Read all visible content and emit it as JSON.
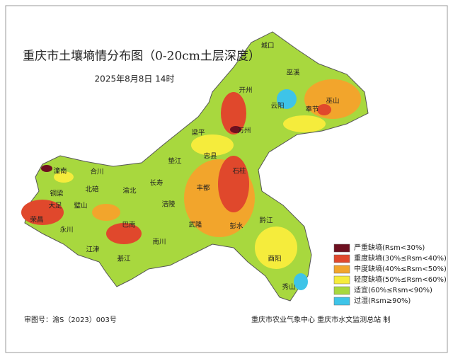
{
  "header": {
    "title": "重庆市土壤墒情分布图（0-20cm土层深度）",
    "date": "2025年8月8日  14时"
  },
  "map": {
    "labels": [
      "城口",
      "巫溪",
      "开州",
      "巫山",
      "云阳",
      "奉节",
      "万州",
      "梁平",
      "忠县",
      "垫江",
      "石柱",
      "潼南",
      "合川",
      "长寿",
      "丰都",
      "铜梁",
      "北碚",
      "渝北",
      "大足",
      "璧山",
      "涪陵",
      "荣昌",
      "永川",
      "巴南",
      "武隆",
      "彭水",
      "黔江",
      "南川",
      "江津",
      "綦江",
      "酉阳",
      "秀山"
    ]
  },
  "legend": [
    {
      "label": "严重缺墒(Rsm<30%)",
      "color": "#6e1020"
    },
    {
      "label": "重度缺墒(30%≤Rsm<40%)",
      "color": "#e0482c"
    },
    {
      "label": "中度缺墒(40%≤Rsm<50%)",
      "color": "#f2a52c"
    },
    {
      "label": "轻度缺墒(50%≤Rsm<60%)",
      "color": "#f5ec3c"
    },
    {
      "label": "适宜(60%≤Rsm<90%)",
      "color": "#a8d83e"
    },
    {
      "label": "过湿(Rsm≥90%)",
      "color": "#3ec4e8"
    }
  ],
  "footer": {
    "approval": "审图号：渝S（2023）003号",
    "producer": "重庆市农业气象中心  重庆市水文监测总站  制"
  }
}
